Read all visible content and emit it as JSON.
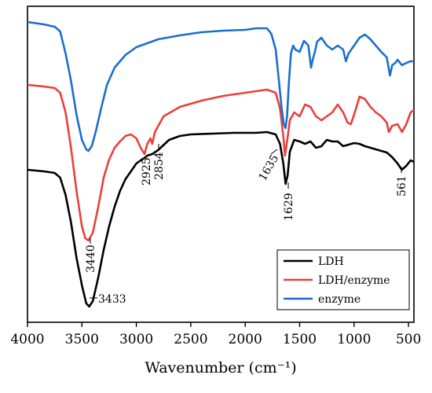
{
  "chart_data": {
    "type": "line",
    "xlabel": "Wavenumber (cm⁻¹)",
    "xlim": [
      4000,
      450
    ],
    "x_ticks": [
      "4000",
      "3500",
      "3000",
      "2500",
      "2000",
      "1500",
      "1000",
      "500"
    ],
    "x_tick_values": [
      4000,
      3500,
      3000,
      2500,
      2000,
      1500,
      1000,
      500
    ],
    "ylabel": "",
    "grid": false,
    "legend_placement": "bottom-right",
    "series": [
      {
        "name": "LDH",
        "color": "#000000",
        "points": [
          [
            4000,
            208
          ],
          [
            3850,
            210
          ],
          [
            3750,
            212
          ],
          [
            3700,
            218
          ],
          [
            3650,
            240
          ],
          [
            3600,
            275
          ],
          [
            3550,
            320
          ],
          [
            3500,
            355
          ],
          [
            3460,
            378
          ],
          [
            3433,
            382
          ],
          [
            3400,
            375
          ],
          [
            3350,
            345
          ],
          [
            3300,
            310
          ],
          [
            3250,
            280
          ],
          [
            3200,
            255
          ],
          [
            3150,
            235
          ],
          [
            3100,
            220
          ],
          [
            3050,
            210
          ],
          [
            3000,
            200
          ],
          [
            2950,
            195
          ],
          [
            2925,
            193
          ],
          [
            2900,
            190
          ],
          [
            2854,
            188
          ],
          [
            2800,
            183
          ],
          [
            2700,
            170
          ],
          [
            2600,
            165
          ],
          [
            2500,
            163
          ],
          [
            2300,
            162
          ],
          [
            2100,
            161
          ],
          [
            1900,
            161
          ],
          [
            1800,
            160
          ],
          [
            1720,
            163
          ],
          [
            1680,
            175
          ],
          [
            1650,
            200
          ],
          [
            1629,
            226
          ],
          [
            1610,
            215
          ],
          [
            1590,
            185
          ],
          [
            1550,
            170
          ],
          [
            1500,
            172
          ],
          [
            1450,
            175
          ],
          [
            1400,
            172
          ],
          [
            1350,
            180
          ],
          [
            1300,
            178
          ],
          [
            1250,
            170
          ],
          [
            1200,
            172
          ],
          [
            1150,
            172
          ],
          [
            1100,
            178
          ],
          [
            1050,
            176
          ],
          [
            1000,
            174
          ],
          [
            950,
            175
          ],
          [
            900,
            178
          ],
          [
            850,
            180
          ],
          [
            800,
            182
          ],
          [
            750,
            184
          ],
          [
            700,
            186
          ],
          [
            650,
            192
          ],
          [
            600,
            200
          ],
          [
            561,
            208
          ],
          [
            520,
            203
          ],
          [
            480,
            196
          ],
          [
            450,
            198
          ]
        ]
      },
      {
        "name": "LDH/enzyme",
        "color": "#e8413b",
        "points": [
          [
            4000,
            100
          ],
          [
            3850,
            102
          ],
          [
            3750,
            104
          ],
          [
            3700,
            110
          ],
          [
            3650,
            135
          ],
          [
            3600,
            180
          ],
          [
            3550,
            235
          ],
          [
            3500,
            280
          ],
          [
            3470,
            295
          ],
          [
            3440,
            298
          ],
          [
            3400,
            288
          ],
          [
            3350,
            255
          ],
          [
            3300,
            218
          ],
          [
            3250,
            195
          ],
          [
            3200,
            180
          ],
          [
            3150,
            172
          ],
          [
            3100,
            165
          ],
          [
            3050,
            163
          ],
          [
            3000,
            168
          ],
          [
            2960,
            180
          ],
          [
            2925,
            188
          ],
          [
            2900,
            175
          ],
          [
            2870,
            168
          ],
          [
            2854,
            175
          ],
          [
            2830,
            160
          ],
          [
            2750,
            140
          ],
          [
            2600,
            128
          ],
          [
            2400,
            120
          ],
          [
            2200,
            114
          ],
          [
            2000,
            110
          ],
          [
            1800,
            106
          ],
          [
            1720,
            110
          ],
          [
            1680,
            130
          ],
          [
            1650,
            165
          ],
          [
            1635,
            190
          ],
          [
            1615,
            172
          ],
          [
            1590,
            145
          ],
          [
            1550,
            135
          ],
          [
            1500,
            140
          ],
          [
            1450,
            125
          ],
          [
            1400,
            128
          ],
          [
            1350,
            140
          ],
          [
            1300,
            145
          ],
          [
            1250,
            140
          ],
          [
            1200,
            135
          ],
          [
            1150,
            125
          ],
          [
            1100,
            135
          ],
          [
            1060,
            148
          ],
          [
            1030,
            150
          ],
          [
            1000,
            138
          ],
          [
            950,
            115
          ],
          [
            900,
            118
          ],
          [
            850,
            128
          ],
          [
            800,
            135
          ],
          [
            750,
            140
          ],
          [
            700,
            148
          ],
          [
            680,
            160
          ],
          [
            650,
            152
          ],
          [
            600,
            150
          ],
          [
            560,
            160
          ],
          [
            520,
            150
          ],
          [
            480,
            135
          ],
          [
            450,
            132
          ]
        ]
      },
      {
        "name": "enzyme",
        "color": "#1a6fce",
        "points": [
          [
            4000,
            20
          ],
          [
            3850,
            23
          ],
          [
            3750,
            26
          ],
          [
            3700,
            32
          ],
          [
            3650,
            60
          ],
          [
            3600,
            95
          ],
          [
            3550,
            138
          ],
          [
            3500,
            170
          ],
          [
            3460,
            182
          ],
          [
            3440,
            184
          ],
          [
            3410,
            178
          ],
          [
            3370,
            158
          ],
          [
            3320,
            128
          ],
          [
            3270,
            100
          ],
          [
            3200,
            78
          ],
          [
            3100,
            62
          ],
          [
            3000,
            52
          ],
          [
            2900,
            47
          ],
          [
            2800,
            42
          ],
          [
            2600,
            37
          ],
          [
            2400,
            33
          ],
          [
            2200,
            31
          ],
          [
            2000,
            30
          ],
          [
            1900,
            28
          ],
          [
            1800,
            28
          ],
          [
            1760,
            35
          ],
          [
            1720,
            55
          ],
          [
            1690,
            95
          ],
          [
            1665,
            130
          ],
          [
            1645,
            150
          ],
          [
            1630,
            155
          ],
          [
            1615,
            140
          ],
          [
            1600,
            100
          ],
          [
            1580,
            60
          ],
          [
            1560,
            50
          ],
          [
            1540,
            55
          ],
          [
            1500,
            58
          ],
          [
            1460,
            44
          ],
          [
            1420,
            50
          ],
          [
            1395,
            78
          ],
          [
            1380,
            68
          ],
          [
            1360,
            58
          ],
          [
            1340,
            45
          ],
          [
            1300,
            40
          ],
          [
            1250,
            50
          ],
          [
            1200,
            55
          ],
          [
            1150,
            50
          ],
          [
            1100,
            55
          ],
          [
            1075,
            70
          ],
          [
            1050,
            60
          ],
          [
            1000,
            50
          ],
          [
            950,
            40
          ],
          [
            900,
            36
          ],
          [
            850,
            42
          ],
          [
            800,
            50
          ],
          [
            750,
            58
          ],
          [
            700,
            65
          ],
          [
            670,
            88
          ],
          [
            650,
            75
          ],
          [
            620,
            72
          ],
          [
            600,
            68
          ],
          [
            560,
            75
          ],
          [
            520,
            72
          ],
          [
            480,
            70
          ],
          [
            450,
            70
          ]
        ]
      }
    ],
    "annotations": [
      "3433",
      "3440",
      "2925",
      "2854",
      "1635",
      "1629",
      "561"
    ]
  }
}
